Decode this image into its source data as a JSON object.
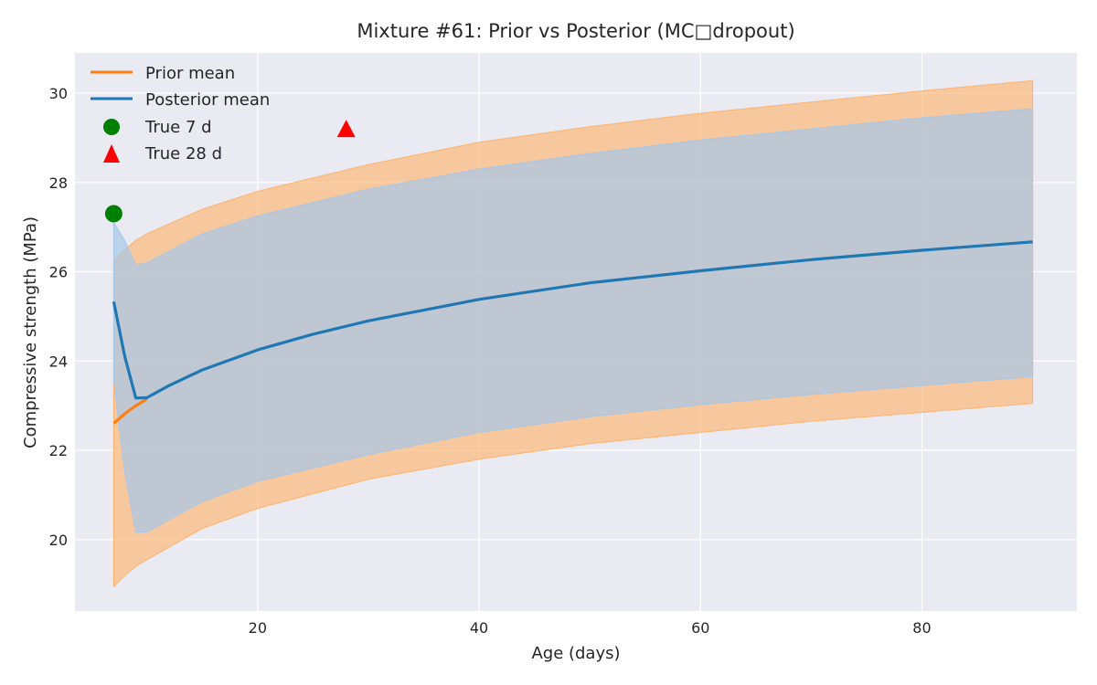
{
  "chart_data": {
    "type": "line",
    "title": "Mixture #61: Prior vs Posterior (MC□dropout)",
    "xlabel": "Age (days)",
    "ylabel": "Compressive strength (MPa)",
    "xlim": [
      3.5,
      94
    ],
    "ylim": [
      18.4,
      30.9
    ],
    "xticks": [
      20,
      40,
      60,
      80
    ],
    "yticks": [
      20,
      22,
      24,
      26,
      28,
      30
    ],
    "grid": true,
    "legend_position": "top-left",
    "legend": [
      "Prior mean",
      "Posterior mean",
      "True 7 d",
      "True 28 d"
    ],
    "series": [
      {
        "name": "Prior mean",
        "color": "#ff7f0e",
        "x": [
          7,
          8,
          9,
          10
        ],
        "y": [
          22.6,
          22.82,
          23.0,
          23.15
        ]
      },
      {
        "name": "Posterior mean",
        "color": "#1f77b4",
        "x": [
          7,
          8,
          9,
          10,
          12,
          15,
          20,
          25,
          30,
          40,
          50,
          60,
          70,
          80,
          90
        ],
        "y": [
          25.33,
          24.1,
          23.17,
          23.18,
          23.45,
          23.8,
          24.25,
          24.6,
          24.9,
          25.38,
          25.75,
          26.02,
          26.27,
          26.48,
          26.67
        ]
      }
    ],
    "bands": [
      {
        "name": "prior-band",
        "color": "#ffb26b",
        "x": [
          7,
          8,
          9,
          10,
          15,
          20,
          30,
          40,
          50,
          60,
          70,
          80,
          90
        ],
        "upper": [
          26.25,
          26.5,
          26.7,
          26.85,
          27.4,
          27.8,
          28.4,
          28.9,
          29.25,
          29.55,
          29.8,
          30.05,
          30.28
        ],
        "lower": [
          18.95,
          19.2,
          19.4,
          19.55,
          20.25,
          20.7,
          21.35,
          21.8,
          22.15,
          22.4,
          22.65,
          22.85,
          23.05
        ]
      },
      {
        "name": "posterior-band",
        "color": "#a6c8e8",
        "x": [
          7,
          8,
          9,
          10,
          15,
          20,
          30,
          40,
          50,
          60,
          70,
          80,
          90
        ],
        "upper": [
          27.1,
          26.7,
          26.15,
          26.2,
          26.85,
          27.25,
          27.85,
          28.3,
          28.65,
          28.95,
          29.2,
          29.45,
          29.65
        ],
        "lower": [
          23.55,
          21.5,
          20.17,
          20.17,
          20.85,
          21.3,
          21.9,
          22.4,
          22.75,
          23.02,
          23.25,
          23.45,
          23.65
        ]
      }
    ],
    "points": [
      {
        "name": "True 7 d",
        "marker": "circle",
        "color": "#008000",
        "x": 7,
        "y": 27.3
      },
      {
        "name": "True 28 d",
        "marker": "triangle",
        "color": "#ff0000",
        "x": 28,
        "y": 29.2
      }
    ]
  }
}
